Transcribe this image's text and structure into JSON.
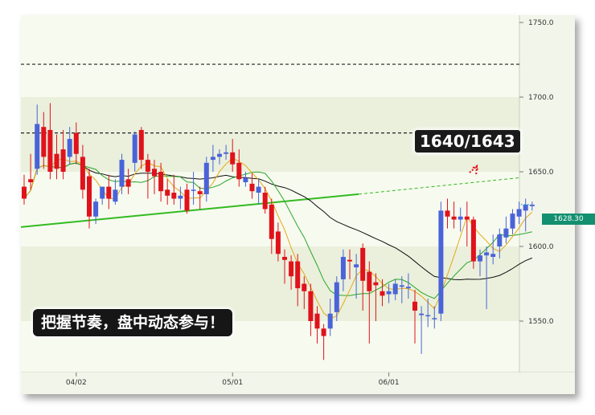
{
  "chart_data": {
    "type": "candlestick",
    "y_ticks": [
      "1750.0",
      "1700.0",
      "1650.0",
      "1600.0",
      "1550.0"
    ],
    "y_tick_values": [
      1750,
      1700,
      1650,
      1600,
      1550
    ],
    "ylim": [
      1515,
      1755
    ],
    "x_ticks": [
      "04/02",
      "05/01",
      "06/01"
    ],
    "x_tick_index": [
      8,
      32,
      56
    ],
    "last_price": "1628.30",
    "resistance_levels": [
      1722,
      1676
    ],
    "annotation": "1640/1643",
    "slogan": "把握节奏，盘中动态参与！",
    "colors": {
      "up": "#4a63d8",
      "down": "#e0121b",
      "ma_long": "#111111",
      "ma_mid": "#2aa62a",
      "ma_short": "#e6a817",
      "trend": "#33bb22",
      "price_tag": "#139070"
    },
    "candles": [
      {
        "o": 1640,
        "h": 1648,
        "c": 1632,
        "l": 1628
      },
      {
        "o": 1645,
        "h": 1662,
        "c": 1643,
        "l": 1638
      },
      {
        "o": 1652,
        "h": 1695,
        "c": 1682,
        "l": 1648
      },
      {
        "o": 1680,
        "h": 1690,
        "c": 1660,
        "l": 1652
      },
      {
        "o": 1678,
        "h": 1696,
        "c": 1650,
        "l": 1645
      },
      {
        "o": 1662,
        "h": 1675,
        "c": 1652,
        "l": 1645
      },
      {
        "o": 1665,
        "h": 1678,
        "c": 1650,
        "l": 1645
      },
      {
        "o": 1660,
        "h": 1680,
        "c": 1672,
        "l": 1655
      },
      {
        "o": 1676,
        "h": 1683,
        "c": 1662,
        "l": 1655
      },
      {
        "o": 1660,
        "h": 1668,
        "c": 1638,
        "l": 1632
      },
      {
        "o": 1647,
        "h": 1652,
        "c": 1620,
        "l": 1612
      },
      {
        "o": 1620,
        "h": 1632,
        "c": 1630,
        "l": 1615
      },
      {
        "o": 1632,
        "h": 1640,
        "c": 1640,
        "l": 1628
      },
      {
        "o": 1640,
        "h": 1648,
        "c": 1632,
        "l": 1625
      },
      {
        "o": 1630,
        "h": 1645,
        "c": 1638,
        "l": 1628
      },
      {
        "o": 1640,
        "h": 1662,
        "c": 1658,
        "l": 1635
      },
      {
        "o": 1645,
        "h": 1652,
        "c": 1640,
        "l": 1635
      },
      {
        "o": 1656,
        "h": 1677,
        "c": 1675,
        "l": 1650
      },
      {
        "o": 1678,
        "h": 1680,
        "c": 1658,
        "l": 1652
      },
      {
        "o": 1658,
        "h": 1662,
        "c": 1650,
        "l": 1632
      },
      {
        "o": 1652,
        "h": 1658,
        "c": 1647,
        "l": 1635
      },
      {
        "o": 1650,
        "h": 1656,
        "c": 1637,
        "l": 1630
      },
      {
        "o": 1638,
        "h": 1645,
        "c": 1634,
        "l": 1628
      },
      {
        "o": 1636,
        "h": 1648,
        "c": 1632,
        "l": 1628
      },
      {
        "o": 1632,
        "h": 1640,
        "c": 1634,
        "l": 1625
      },
      {
        "o": 1638,
        "h": 1642,
        "c": 1624,
        "l": 1622
      },
      {
        "o": 1638,
        "h": 1650,
        "c": 1638,
        "l": 1628
      },
      {
        "o": 1637,
        "h": 1640,
        "c": 1635,
        "l": 1625
      },
      {
        "o": 1635,
        "h": 1660,
        "c": 1656,
        "l": 1630
      },
      {
        "o": 1658,
        "h": 1668,
        "c": 1660,
        "l": 1650
      },
      {
        "o": 1660,
        "h": 1665,
        "c": 1662,
        "l": 1655
      },
      {
        "o": 1662,
        "h": 1668,
        "c": 1663,
        "l": 1658
      },
      {
        "o": 1663,
        "h": 1672,
        "c": 1655,
        "l": 1650
      },
      {
        "o": 1656,
        "h": 1665,
        "c": 1645,
        "l": 1640
      },
      {
        "o": 1643,
        "h": 1650,
        "c": 1646,
        "l": 1640
      },
      {
        "o": 1642,
        "h": 1649,
        "c": 1637,
        "l": 1632
      },
      {
        "o": 1636,
        "h": 1645,
        "c": 1640,
        "l": 1628
      },
      {
        "o": 1636,
        "h": 1640,
        "c": 1625,
        "l": 1622
      },
      {
        "o": 1628,
        "h": 1632,
        "c": 1605,
        "l": 1595
      },
      {
        "o": 1610,
        "h": 1616,
        "c": 1595,
        "l": 1590
      },
      {
        "o": 1593,
        "h": 1598,
        "c": 1591,
        "l": 1575
      },
      {
        "o": 1590,
        "h": 1594,
        "c": 1580,
        "l": 1571
      },
      {
        "o": 1590,
        "h": 1595,
        "c": 1572,
        "l": 1560
      },
      {
        "o": 1575,
        "h": 1580,
        "c": 1570,
        "l": 1558
      },
      {
        "o": 1570,
        "h": 1575,
        "c": 1550,
        "l": 1540
      },
      {
        "o": 1555,
        "h": 1560,
        "c": 1545,
        "l": 1535
      },
      {
        "o": 1545,
        "h": 1548,
        "c": 1540,
        "l": 1524
      },
      {
        "o": 1545,
        "h": 1565,
        "c": 1555,
        "l": 1540
      },
      {
        "o": 1556,
        "h": 1580,
        "c": 1576,
        "l": 1550
      },
      {
        "o": 1578,
        "h": 1598,
        "c": 1593,
        "l": 1570
      },
      {
        "o": 1591,
        "h": 1598,
        "c": 1590,
        "l": 1578
      },
      {
        "o": 1586,
        "h": 1595,
        "c": 1588,
        "l": 1565
      },
      {
        "o": 1599,
        "h": 1602,
        "c": 1577,
        "l": 1557
      },
      {
        "o": 1583,
        "h": 1590,
        "c": 1570,
        "l": 1535
      },
      {
        "o": 1576,
        "h": 1582,
        "c": 1574,
        "l": 1550
      },
      {
        "o": 1570,
        "h": 1578,
        "c": 1567,
        "l": 1560
      },
      {
        "o": 1568,
        "h": 1575,
        "c": 1570,
        "l": 1562
      },
      {
        "o": 1568,
        "h": 1578,
        "c": 1575,
        "l": 1564
      },
      {
        "o": 1573,
        "h": 1580,
        "c": 1574,
        "l": 1562
      },
      {
        "o": 1572,
        "h": 1582,
        "c": 1573,
        "l": 1565
      },
      {
        "o": 1563,
        "h": 1571,
        "c": 1557,
        "l": 1535
      },
      {
        "o": 1554,
        "h": 1560,
        "c": 1555,
        "l": 1528
      },
      {
        "o": 1554,
        "h": 1565,
        "c": 1554,
        "l": 1546
      },
      {
        "o": 1552,
        "h": 1560,
        "c": 1552,
        "l": 1545
      },
      {
        "o": 1555,
        "h": 1630,
        "c": 1624,
        "l": 1550
      },
      {
        "o": 1624,
        "h": 1632,
        "c": 1620,
        "l": 1612
      },
      {
        "o": 1620,
        "h": 1630,
        "c": 1618,
        "l": 1612
      },
      {
        "o": 1618,
        "h": 1626,
        "c": 1620,
        "l": 1610
      },
      {
        "o": 1620,
        "h": 1630,
        "c": 1618,
        "l": 1600
      },
      {
        "o": 1618,
        "h": 1620,
        "c": 1590,
        "l": 1585
      },
      {
        "o": 1590,
        "h": 1598,
        "c": 1594,
        "l": 1580
      },
      {
        "o": 1594,
        "h": 1600,
        "c": 1596,
        "l": 1558
      },
      {
        "o": 1593,
        "h": 1608,
        "c": 1595,
        "l": 1588
      },
      {
        "o": 1600,
        "h": 1612,
        "c": 1608,
        "l": 1592
      },
      {
        "o": 1606,
        "h": 1620,
        "c": 1612,
        "l": 1602
      },
      {
        "o": 1612,
        "h": 1625,
        "c": 1622,
        "l": 1608
      },
      {
        "o": 1620,
        "h": 1630,
        "c": 1625,
        "l": 1615
      },
      {
        "o": 1624,
        "h": 1632,
        "c": 1628,
        "l": 1610
      },
      {
        "o": 1627,
        "h": 1630,
        "c": 1628,
        "l": 1624
      }
    ]
  }
}
